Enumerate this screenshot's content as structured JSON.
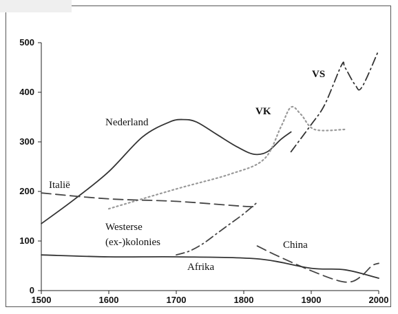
{
  "chart_data": {
    "type": "line",
    "title": "",
    "xlabel": "",
    "ylabel": "",
    "xlim": [
      1500,
      2000
    ],
    "ylim": [
      0,
      500
    ],
    "x_ticks": [
      1500,
      1600,
      1700,
      1800,
      1900,
      2000
    ],
    "y_ticks": [
      0,
      100,
      200,
      300,
      400,
      500
    ],
    "grid": false,
    "legend": "none",
    "series": [
      {
        "name": "Nederland",
        "style": "solid",
        "color": "#333333",
        "points": [
          [
            1500,
            135
          ],
          [
            1550,
            185
          ],
          [
            1600,
            240
          ],
          [
            1650,
            310
          ],
          [
            1690,
            340
          ],
          [
            1710,
            345
          ],
          [
            1730,
            340
          ],
          [
            1760,
            315
          ],
          [
            1790,
            290
          ],
          [
            1815,
            275
          ],
          [
            1835,
            280
          ],
          [
            1855,
            305
          ],
          [
            1870,
            320
          ]
        ]
      },
      {
        "name": "VK",
        "style": "dotted",
        "color": "#999999",
        "points": [
          [
            1600,
            165
          ],
          [
            1700,
            205
          ],
          [
            1780,
            235
          ],
          [
            1830,
            265
          ],
          [
            1855,
            330
          ],
          [
            1870,
            370
          ],
          [
            1885,
            355
          ],
          [
            1905,
            325
          ],
          [
            1950,
            325
          ]
        ]
      },
      {
        "name": "VS",
        "style": "dashdot",
        "color": "#333333",
        "points": [
          [
            1870,
            280
          ],
          [
            1900,
            335
          ],
          [
            1920,
            375
          ],
          [
            1945,
            455
          ],
          [
            1950,
            450
          ],
          [
            1965,
            415
          ],
          [
            1975,
            410
          ],
          [
            2000,
            485
          ]
        ]
      },
      {
        "name": "Italië",
        "style": "longdash",
        "color": "#444444",
        "points": [
          [
            1500,
            197
          ],
          [
            1600,
            185
          ],
          [
            1700,
            180
          ],
          [
            1800,
            170
          ],
          [
            1820,
            170
          ]
        ]
      },
      {
        "name": "Westerse (ex-)kolonies",
        "style": "dashdot",
        "color": "#444444",
        "points": [
          [
            1700,
            72
          ],
          [
            1720,
            80
          ],
          [
            1740,
            95
          ],
          [
            1760,
            115
          ],
          [
            1780,
            135
          ],
          [
            1800,
            155
          ],
          [
            1820,
            178
          ]
        ]
      },
      {
        "name": "China",
        "style": "longdash",
        "color": "#444444",
        "points": [
          [
            1820,
            90
          ],
          [
            1850,
            70
          ],
          [
            1900,
            40
          ],
          [
            1940,
            20
          ],
          [
            1960,
            18
          ],
          [
            1975,
            30
          ],
          [
            1990,
            50
          ],
          [
            2000,
            55
          ]
        ]
      },
      {
        "name": "Afrika",
        "style": "solid",
        "color": "#333333",
        "points": [
          [
            1500,
            72
          ],
          [
            1600,
            68
          ],
          [
            1700,
            68
          ],
          [
            1820,
            64
          ],
          [
            1900,
            45
          ],
          [
            1950,
            42
          ],
          [
            2000,
            25
          ]
        ]
      }
    ]
  },
  "labels": {
    "nederland": "Nederland",
    "vk": "VK",
    "vs": "VS",
    "italie": "Italië",
    "westerse_line1": "Westerse",
    "westerse_line2": "(ex-)kolonies",
    "china": "China",
    "afrika": "Afrika"
  }
}
